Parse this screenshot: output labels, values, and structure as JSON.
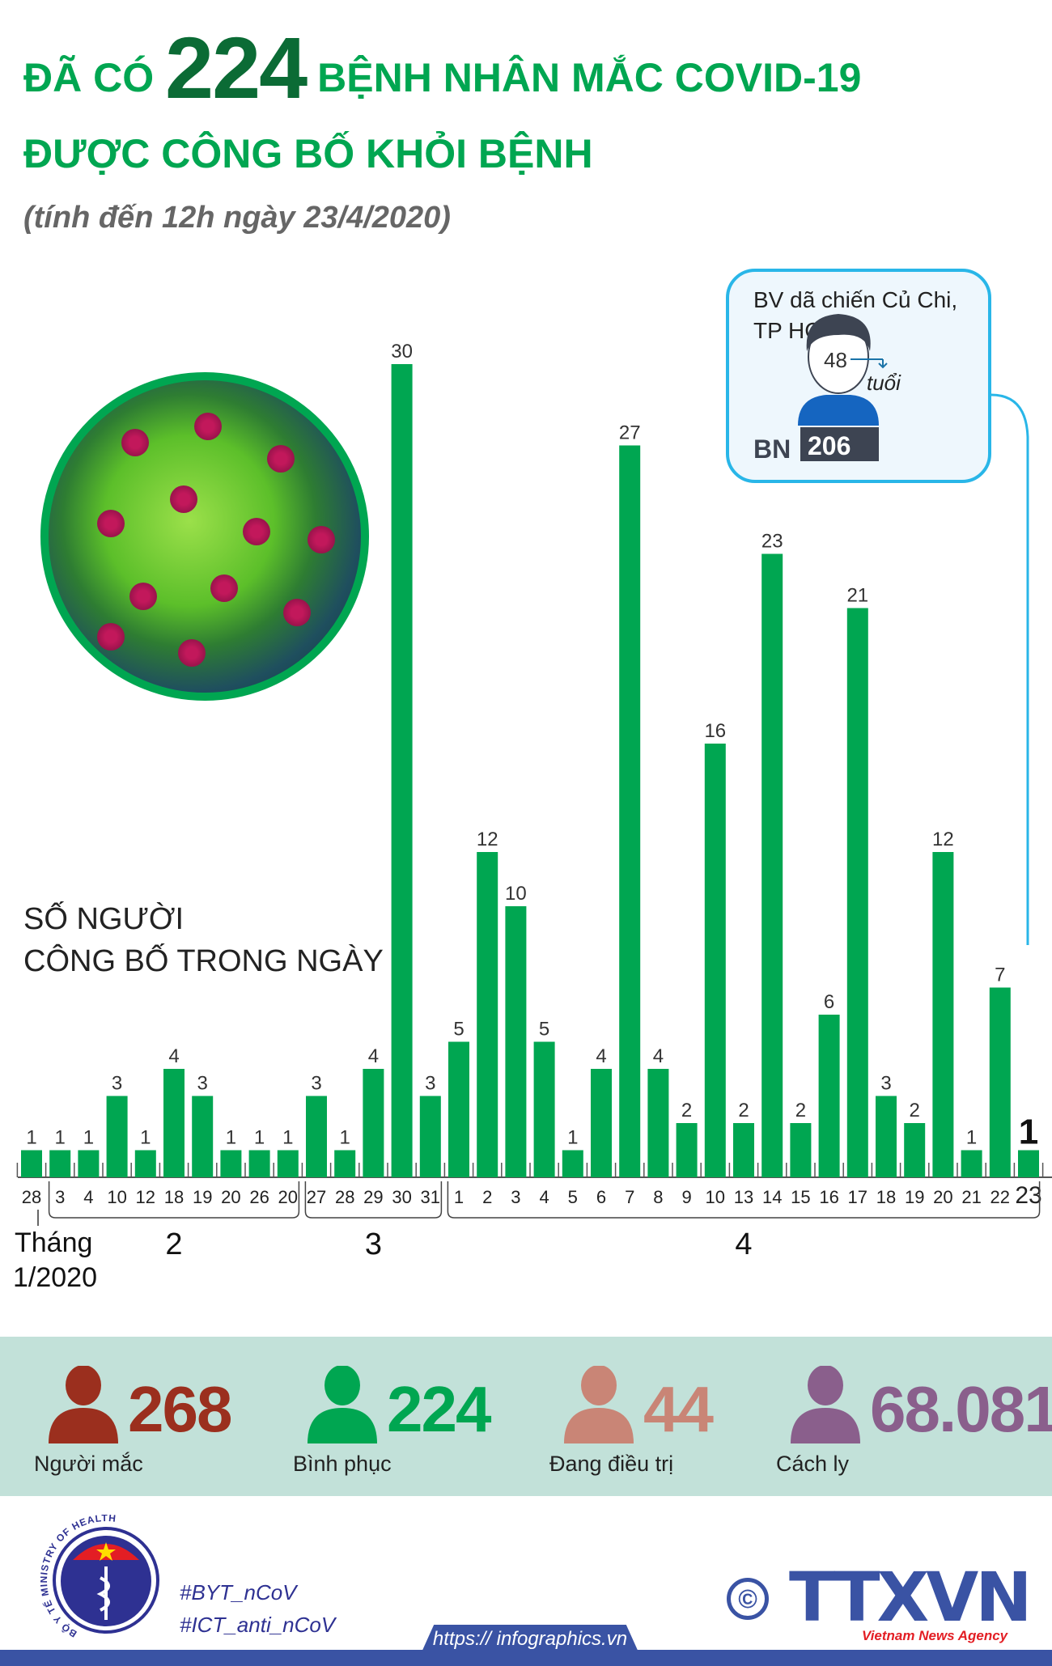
{
  "header": {
    "title_prefix": "ĐÃ CÓ",
    "title_number": "224",
    "title_suffix": "BỆNH NHÂN MẮC COVID-19",
    "title_line2": "ĐƯỢC CÔNG BỐ KHỎI BỆNH",
    "subtitle": "(tính đến 12h ngày 23/4/2020)"
  },
  "chart_data": {
    "type": "bar",
    "ylabel": "SỐ NGƯỜI CÔNG BỐ TRONG NGÀY",
    "ylabel_lines": [
      "SỐ NGƯỜI",
      "CÔNG BỐ TRONG NGÀY"
    ],
    "categories": [
      "28",
      "3",
      "4",
      "10",
      "12",
      "18",
      "19",
      "20",
      "26",
      "20",
      "27",
      "28",
      "29",
      "30",
      "31",
      "1",
      "2",
      "3",
      "4",
      "5",
      "6",
      "7",
      "8",
      "9",
      "10",
      "13",
      "14",
      "15",
      "16",
      "17",
      "18",
      "19",
      "20",
      "21",
      "22",
      "23"
    ],
    "values": [
      1,
      1,
      1,
      3,
      1,
      4,
      3,
      1,
      1,
      1,
      3,
      1,
      4,
      30,
      3,
      5,
      12,
      10,
      5,
      1,
      4,
      27,
      4,
      2,
      16,
      2,
      23,
      2,
      6,
      21,
      3,
      2,
      12,
      1,
      7,
      1
    ],
    "month_groups": [
      {
        "label": "Tháng",
        "label2": "1/2020",
        "start": 0,
        "end": 0
      },
      {
        "label": "2",
        "start": 1,
        "end": 9
      },
      {
        "label": "3",
        "start": 10,
        "end": 14
      },
      {
        "label": "4",
        "start": 15,
        "end": 35
      }
    ],
    "ylim": [
      0,
      30
    ],
    "grid": false,
    "bar_color": "#00a651"
  },
  "callout": {
    "location_line1": "BV dã chiến Củ Chi,",
    "location_line2": "TP HCM",
    "age": "48",
    "age_unit": "tuổi",
    "patient_prefix": "BN",
    "patient_id": "206",
    "border_color": "#29b6e8"
  },
  "stats": [
    {
      "value": "268",
      "label": "Người mắc",
      "color": "#9b2f1e"
    },
    {
      "value": "224",
      "label": "Bình phục",
      "color": "#00a651"
    },
    {
      "value": "44",
      "label": "Đang điều trị",
      "color": "#c98576"
    },
    {
      "value": "68.081",
      "label": "Cách ly",
      "color": "#8a5f8c"
    }
  ],
  "footer": {
    "ministry_logo_text": "BỘ Y TẾ MINISTRY OF HEALTH",
    "hashtag1": "#BYT_nCoV",
    "hashtag2": "#ICT_anti_nCoV",
    "url": "https:// infographics.vn",
    "copyright": "©",
    "agency_logo": "TTXVN",
    "agency_name": "Vietnam News Agency"
  }
}
